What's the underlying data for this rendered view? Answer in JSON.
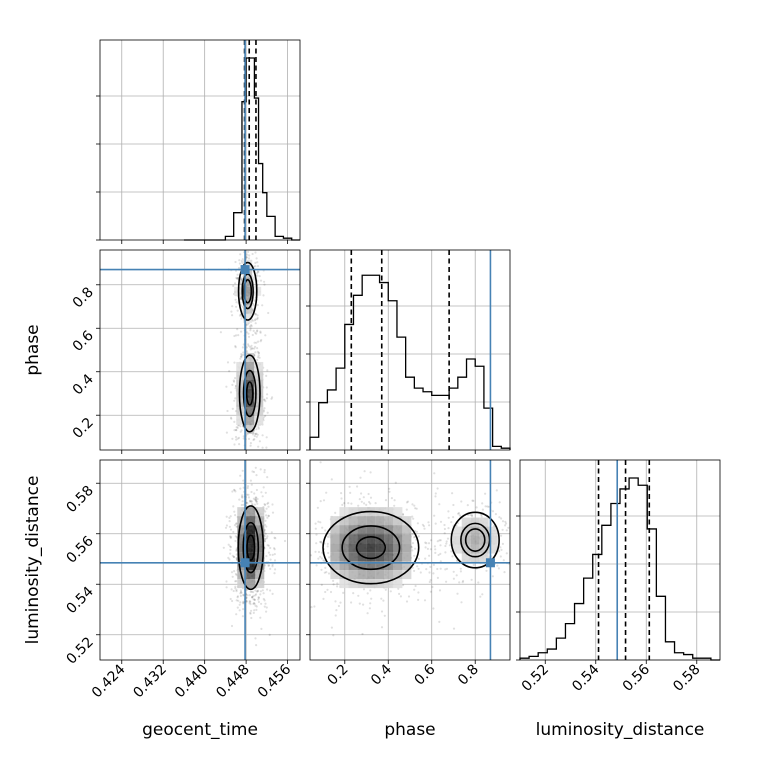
{
  "chart_data": {
    "type": "corner",
    "parameters": [
      "geocent_time",
      "phase",
      "luminosity_distance"
    ],
    "truths": {
      "geocent_time": 0.4478,
      "phase": 0.87,
      "luminosity_distance": 0.5485
    },
    "marginals": {
      "geocent_time": {
        "bin_edges": [
          0.436,
          0.4376,
          0.4392,
          0.4408,
          0.4424,
          0.444,
          0.4456,
          0.4472,
          0.448,
          0.4488,
          0.4496,
          0.4504,
          0.4512,
          0.452,
          0.4536,
          0.4552,
          0.4568,
          0.4584
        ],
        "counts": [
          0,
          0,
          0,
          0,
          0,
          0.02,
          0.15,
          0.76,
          1.0,
          1.0,
          0.78,
          0.42,
          0.26,
          0.13,
          0.02,
          0.01,
          0
        ],
        "quantiles": [
          0.4477,
          0.4486,
          0.4499
        ],
        "range": [
          0.4198,
          0.4584
        ]
      },
      "phase": {
        "bin_edges": [
          0.04,
          0.08,
          0.12,
          0.16,
          0.2,
          0.24,
          0.28,
          0.32,
          0.36,
          0.4,
          0.44,
          0.48,
          0.52,
          0.56,
          0.6,
          0.64,
          0.68,
          0.72,
          0.76,
          0.8,
          0.84,
          0.88,
          0.92,
          0.96
        ],
        "counts": [
          0.07,
          0.26,
          0.33,
          0.45,
          0.69,
          0.85,
          0.96,
          0.96,
          0.92,
          0.82,
          0.62,
          0.4,
          0.34,
          0.32,
          0.3,
          0.3,
          0.34,
          0.4,
          0.5,
          0.46,
          0.23,
          0.02,
          0.01
        ],
        "quantiles": [
          0.23,
          0.37,
          0.68
        ],
        "range": [
          0.04,
          0.96
        ]
      },
      "luminosity_distance": {
        "bin_edges": [
          0.51,
          0.5136,
          0.5172,
          0.5208,
          0.5244,
          0.528,
          0.5316,
          0.5352,
          0.5388,
          0.5424,
          0.546,
          0.5496,
          0.5532,
          0.5568,
          0.5604,
          0.564,
          0.5676,
          0.5712,
          0.5748,
          0.5784,
          0.582,
          0.5856,
          0.5892
        ],
        "counts": [
          0.01,
          0.02,
          0.04,
          0.06,
          0.12,
          0.2,
          0.31,
          0.45,
          0.58,
          0.74,
          0.86,
          0.94,
          1.0,
          0.96,
          0.72,
          0.35,
          0.1,
          0.04,
          0.03,
          0.01,
          0.01,
          0.0
        ],
        "quantiles": [
          0.5411,
          0.5518,
          0.5612
        ],
        "range": [
          0.51,
          0.5892
        ]
      }
    },
    "joint": [
      {
        "x": "geocent_time",
        "y": "phase",
        "x_range": [
          0.4198,
          0.4584
        ],
        "y_range": [
          0.04,
          0.96
        ]
      },
      {
        "x": "geocent_time",
        "y": "luminosity_distance",
        "x_range": [
          0.4198,
          0.4584
        ],
        "y_range": [
          0.51,
          0.5892
        ]
      },
      {
        "x": "phase",
        "y": "luminosity_distance",
        "x_range": [
          0.04,
          0.96
        ],
        "y_range": [
          0.51,
          0.5892
        ]
      }
    ],
    "ticks": {
      "geocent_time": [
        "0.424",
        "0.432",
        "0.440",
        "0.448",
        "0.456"
      ],
      "phase": [
        "0.2",
        "0.4",
        "0.6",
        "0.8"
      ],
      "luminosity_distance": [
        "0.52",
        "0.54",
        "0.56",
        "0.58"
      ]
    },
    "colors": {
      "truth": "#4682b4",
      "contour": "#000000",
      "quantile": "#000000"
    },
    "grid": true,
    "legend": "none",
    "xlabels": [
      "geocent_time",
      "phase",
      "luminosity_distance"
    ],
    "ylabels": [
      "phase",
      "luminosity_distance"
    ]
  }
}
